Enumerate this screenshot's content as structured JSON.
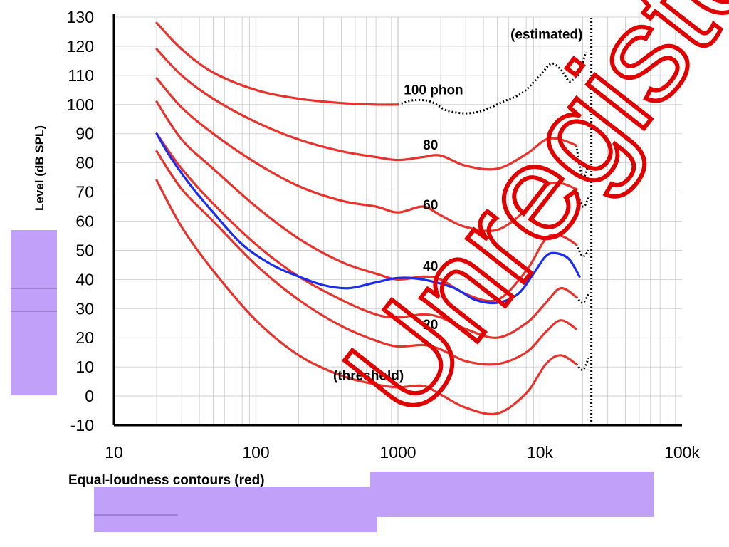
{
  "colors": {
    "contour": "#e8322b",
    "reference": "#1b2cf0",
    "estimated": "#000000",
    "grid": "#c8c8c8",
    "overlay": "#c0a0f8",
    "watermark": "#e00000"
  },
  "watermark": {
    "text": "Unregistered"
  },
  "chart_data": {
    "type": "line",
    "title": "",
    "xlabel": "Equal-loudness contours (red)",
    "ylabel": "Level (dB SPL)",
    "xscale": "log",
    "xlim": [
      10,
      100000
    ],
    "ylim": [
      -10,
      130
    ],
    "grid": true,
    "xticks": [
      {
        "value": 10,
        "label": "10"
      },
      {
        "value": 100,
        "label": "100"
      },
      {
        "value": 1000,
        "label": "1000"
      },
      {
        "value": 10000,
        "label": "10k"
      },
      {
        "value": 100000,
        "label": "100k"
      }
    ],
    "yticks": [
      {
        "value": 130,
        "label": "130"
      },
      {
        "value": 120,
        "label": "120"
      },
      {
        "value": 110,
        "label": "110"
      },
      {
        "value": 100,
        "label": "100"
      },
      {
        "value": 90,
        "label": "90"
      },
      {
        "value": 80,
        "label": "80"
      },
      {
        "value": 70,
        "label": "70"
      },
      {
        "value": 60,
        "label": "60"
      },
      {
        "value": 50,
        "label": "50"
      },
      {
        "value": 40,
        "label": "40"
      },
      {
        "value": 30,
        "label": "30"
      },
      {
        "value": 20,
        "label": "20"
      },
      {
        "value": 10,
        "label": "10"
      },
      {
        "value": 0,
        "label": "0"
      },
      {
        "value": -10,
        "label": "-10"
      }
    ],
    "series": [
      {
        "style": "red",
        "x": [
          20,
          30,
          50,
          100,
          200,
          400,
          700,
          1000
        ],
        "y": [
          128,
          119,
          111,
          105,
          102,
          100.5,
          100,
          100
        ]
      },
      {
        "style": "red",
        "x": [
          20,
          30,
          50,
          100,
          200,
          400,
          700,
          1000,
          1500,
          2000,
          3000,
          5000,
          8000,
          11000,
          14000,
          18000
        ],
        "y": [
          119,
          110,
          102,
          94,
          88,
          84,
          82,
          81,
          82,
          82.5,
          79,
          78,
          83,
          88,
          88,
          86
        ]
      },
      {
        "style": "red",
        "x": [
          20,
          30,
          50,
          100,
          200,
          400,
          700,
          1000,
          1500,
          2000,
          3000,
          5000,
          8000,
          11000,
          14000,
          18000
        ],
        "y": [
          109,
          99,
          90,
          80,
          72,
          67,
          65,
          63,
          65,
          62,
          58,
          57,
          64,
          72,
          73,
          71
        ]
      },
      {
        "style": "red",
        "x": [
          20,
          30,
          50,
          100,
          200,
          400,
          700,
          1000,
          1500,
          2000,
          3000,
          5000,
          8000,
          11000,
          14000,
          18000
        ],
        "y": [
          101,
          88,
          78,
          65,
          54,
          46,
          42,
          40,
          41,
          40,
          35,
          33,
          43,
          54,
          55,
          52
        ]
      },
      {
        "style": "red",
        "x": [
          20,
          30,
          50,
          100,
          200,
          400,
          700,
          1000,
          1500,
          2000,
          3000,
          5000,
          8000,
          11000,
          14000,
          18000
        ],
        "y": [
          90,
          78,
          66,
          52,
          41,
          33,
          28,
          27,
          28,
          27,
          23,
          20,
          25,
          32,
          37,
          34
        ]
      },
      {
        "style": "red",
        "x": [
          20,
          30,
          50,
          100,
          200,
          400,
          700,
          1000,
          1500,
          2000,
          3000,
          5000,
          8000,
          11000,
          14000,
          18000
        ],
        "y": [
          84,
          71,
          60,
          45,
          33,
          24,
          19,
          17,
          17.5,
          16,
          12,
          11,
          15,
          22,
          26,
          23
        ]
      },
      {
        "style": "red",
        "x": [
          20,
          30,
          50,
          100,
          200,
          400,
          700,
          1000,
          1500,
          2000,
          3000,
          5000,
          8000,
          11000,
          14000,
          18000
        ],
        "y": [
          74,
          58,
          43,
          26,
          14,
          7,
          4,
          3,
          3.5,
          0.5,
          -4,
          -6,
          1,
          11,
          14,
          11
        ]
      },
      {
        "style": "blue",
        "x": [
          20,
          25,
          35,
          50,
          80,
          130,
          200,
          300,
          450,
          700,
          1000,
          1500,
          2500,
          3500,
          5000,
          7000,
          9000,
          11000,
          13000,
          16000,
          19000
        ],
        "y": [
          90,
          82,
          72,
          63,
          52,
          45,
          41,
          38,
          37,
          39,
          40.5,
          40,
          37,
          33,
          32,
          35,
          42,
          48,
          49,
          47,
          41
        ]
      }
    ],
    "estimated": [
      {
        "x": [
          1000,
          1300,
          1700,
          2200,
          3000,
          4000,
          5500,
          7500,
          10000,
          12000,
          14000,
          16000,
          17500,
          19000,
          21000
        ],
        "y": [
          100,
          101.5,
          101,
          98,
          97,
          98,
          101,
          104,
          110,
          114,
          112,
          108,
          109,
          111,
          118
        ]
      },
      {
        "x": [
          18000,
          20000,
          22000
        ],
        "y": [
          86,
          75,
          80
        ]
      },
      {
        "x": [
          18000,
          20000,
          22000
        ],
        "y": [
          71,
          65,
          68
        ]
      },
      {
        "x": [
          18000,
          20000,
          22000
        ],
        "y": [
          52,
          48,
          50
        ]
      },
      {
        "x": [
          18000,
          20000,
          22000
        ],
        "y": [
          34,
          32,
          35
        ]
      },
      {
        "x": [
          18000,
          20000,
          22000
        ],
        "y": [
          11,
          9,
          13
        ]
      }
    ],
    "cutoff": {
      "x": 23000,
      "y": [
        -10,
        130
      ]
    },
    "annotations": [
      {
        "text": "(estimated)",
        "x": 6200,
        "y": 122.5
      },
      {
        "text": "100 phon",
        "x": 1100,
        "y": 103.5
      },
      {
        "text": "80",
        "x": 1500,
        "y": 84.5
      },
      {
        "text": "60",
        "x": 1500,
        "y": 64
      },
      {
        "text": "40",
        "x": 1500,
        "y": 43
      },
      {
        "text": "20",
        "x": 1500,
        "y": 23
      },
      {
        "text": "(threshold)",
        "x": 350,
        "y": 5.5
      }
    ]
  }
}
